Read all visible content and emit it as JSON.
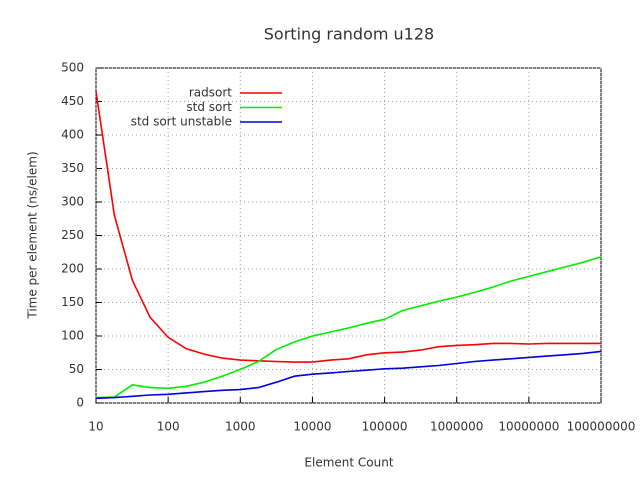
{
  "chart_data": {
    "type": "line",
    "title": "Sorting random u128",
    "x_label": "Element Count",
    "y_label": "Time per element (ns/elem)",
    "xscale": "log",
    "grid": true,
    "legend": "top-left",
    "x": [
      10,
      18,
      32,
      56,
      100,
      178,
      316,
      562,
      1000,
      1778,
      3162,
      5623,
      10000,
      17783,
      31623,
      56234,
      100000,
      177828,
      316228,
      562341,
      1000000,
      1778279,
      3162278,
      5623413,
      10000000,
      17782794,
      31622777,
      56234133,
      100000000
    ],
    "series": [
      {
        "name": "radsort",
        "color": "#ff0000",
        "values": [
          465,
          280,
          183,
          128,
          98,
          81,
          73,
          67,
          64,
          63,
          62,
          61,
          61,
          64,
          66,
          72,
          75,
          76,
          79,
          84,
          86,
          87,
          89,
          89,
          88,
          89,
          89,
          89,
          89
        ]
      },
      {
        "name": "std sort",
        "color": "#00ee00",
        "values": [
          8,
          9,
          27,
          23,
          22,
          25,
          31,
          40,
          50,
          62,
          80,
          91,
          100,
          106,
          112,
          119,
          125,
          138,
          145,
          152,
          158,
          165,
          173,
          182,
          189,
          196,
          203,
          210,
          218
        ]
      },
      {
        "name": "std sort unstable",
        "color": "#0000dd",
        "values": [
          7,
          8,
          10,
          12,
          13,
          15,
          17,
          19,
          20,
          23,
          31,
          40,
          43,
          45,
          47,
          49,
          51,
          52,
          54,
          56,
          59,
          62,
          64,
          66,
          68,
          70,
          72,
          74,
          77
        ]
      }
    ],
    "xlim": [
      10,
      100000000
    ],
    "xticks": [
      10,
      100,
      1000,
      10000,
      100000,
      1000000,
      10000000,
      100000000
    ],
    "ylim": [
      0,
      500
    ],
    "yticks": [
      0,
      50,
      100,
      150,
      200,
      250,
      300,
      350,
      400,
      450,
      500
    ]
  }
}
